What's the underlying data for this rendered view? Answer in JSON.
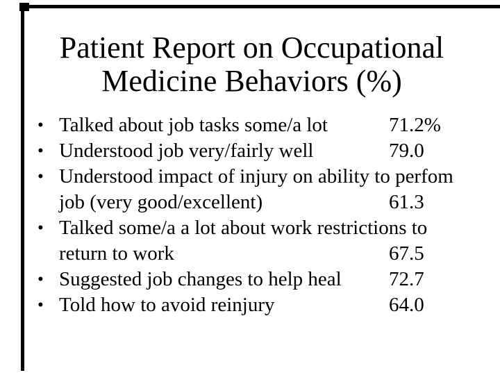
{
  "slide": {
    "background_color": "#ffffff",
    "text_color": "#000000",
    "border_color": "#000000",
    "title": {
      "line1": "Patient Report on Occupational",
      "line2": "Medicine Behaviors (%)"
    },
    "list": {
      "rows": [
        {
          "bullet": "•",
          "text": "Talked about job tasks some/a lot",
          "value": "71.2%"
        },
        {
          "bullet": "•",
          "text": "Understood job very/fairly well",
          "value": "79.0"
        },
        {
          "bullet": "•",
          "text": "Understood impact of injury on ability to perfom",
          "value": ""
        },
        {
          "bullet": "",
          "text": "job (very good/excellent)",
          "value": "61.3"
        },
        {
          "bullet": "•",
          "text": "Talked some/a a lot about work restrictions to",
          "value": ""
        },
        {
          "bullet": "",
          "text": "return to work",
          "value": "67.5"
        },
        {
          "bullet": "•",
          "text": "Suggested job changes to help heal",
          "value": "72.7"
        },
        {
          "bullet": "•",
          "text": "Told how to avoid reinjury",
          "value": "64.0"
        }
      ]
    }
  }
}
